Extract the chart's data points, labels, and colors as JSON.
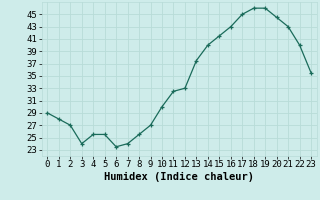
{
  "x": [
    0,
    1,
    2,
    3,
    4,
    5,
    6,
    7,
    8,
    9,
    10,
    11,
    12,
    13,
    14,
    15,
    16,
    17,
    18,
    19,
    20,
    21,
    22,
    23
  ],
  "y": [
    29,
    28,
    27,
    24,
    25.5,
    25.5,
    23.5,
    24,
    25.5,
    27,
    30,
    32.5,
    33,
    37.5,
    40,
    41.5,
    43,
    45,
    46,
    46,
    44.5,
    43,
    40,
    35.5
  ],
  "xlabel": "Humidex (Indice chaleur)",
  "bg_color": "#ceecea",
  "grid_color": "#b8dcd8",
  "line_color": "#1a6b5a",
  "marker_color": "#1a6b5a",
  "yticks": [
    23,
    25,
    27,
    29,
    31,
    33,
    35,
    37,
    39,
    41,
    43,
    45
  ],
  "ylim": [
    22.0,
    47.0
  ],
  "xlim": [
    -0.5,
    23.5
  ],
  "xlabel_fontsize": 7.5,
  "tick_fontsize": 6.5
}
